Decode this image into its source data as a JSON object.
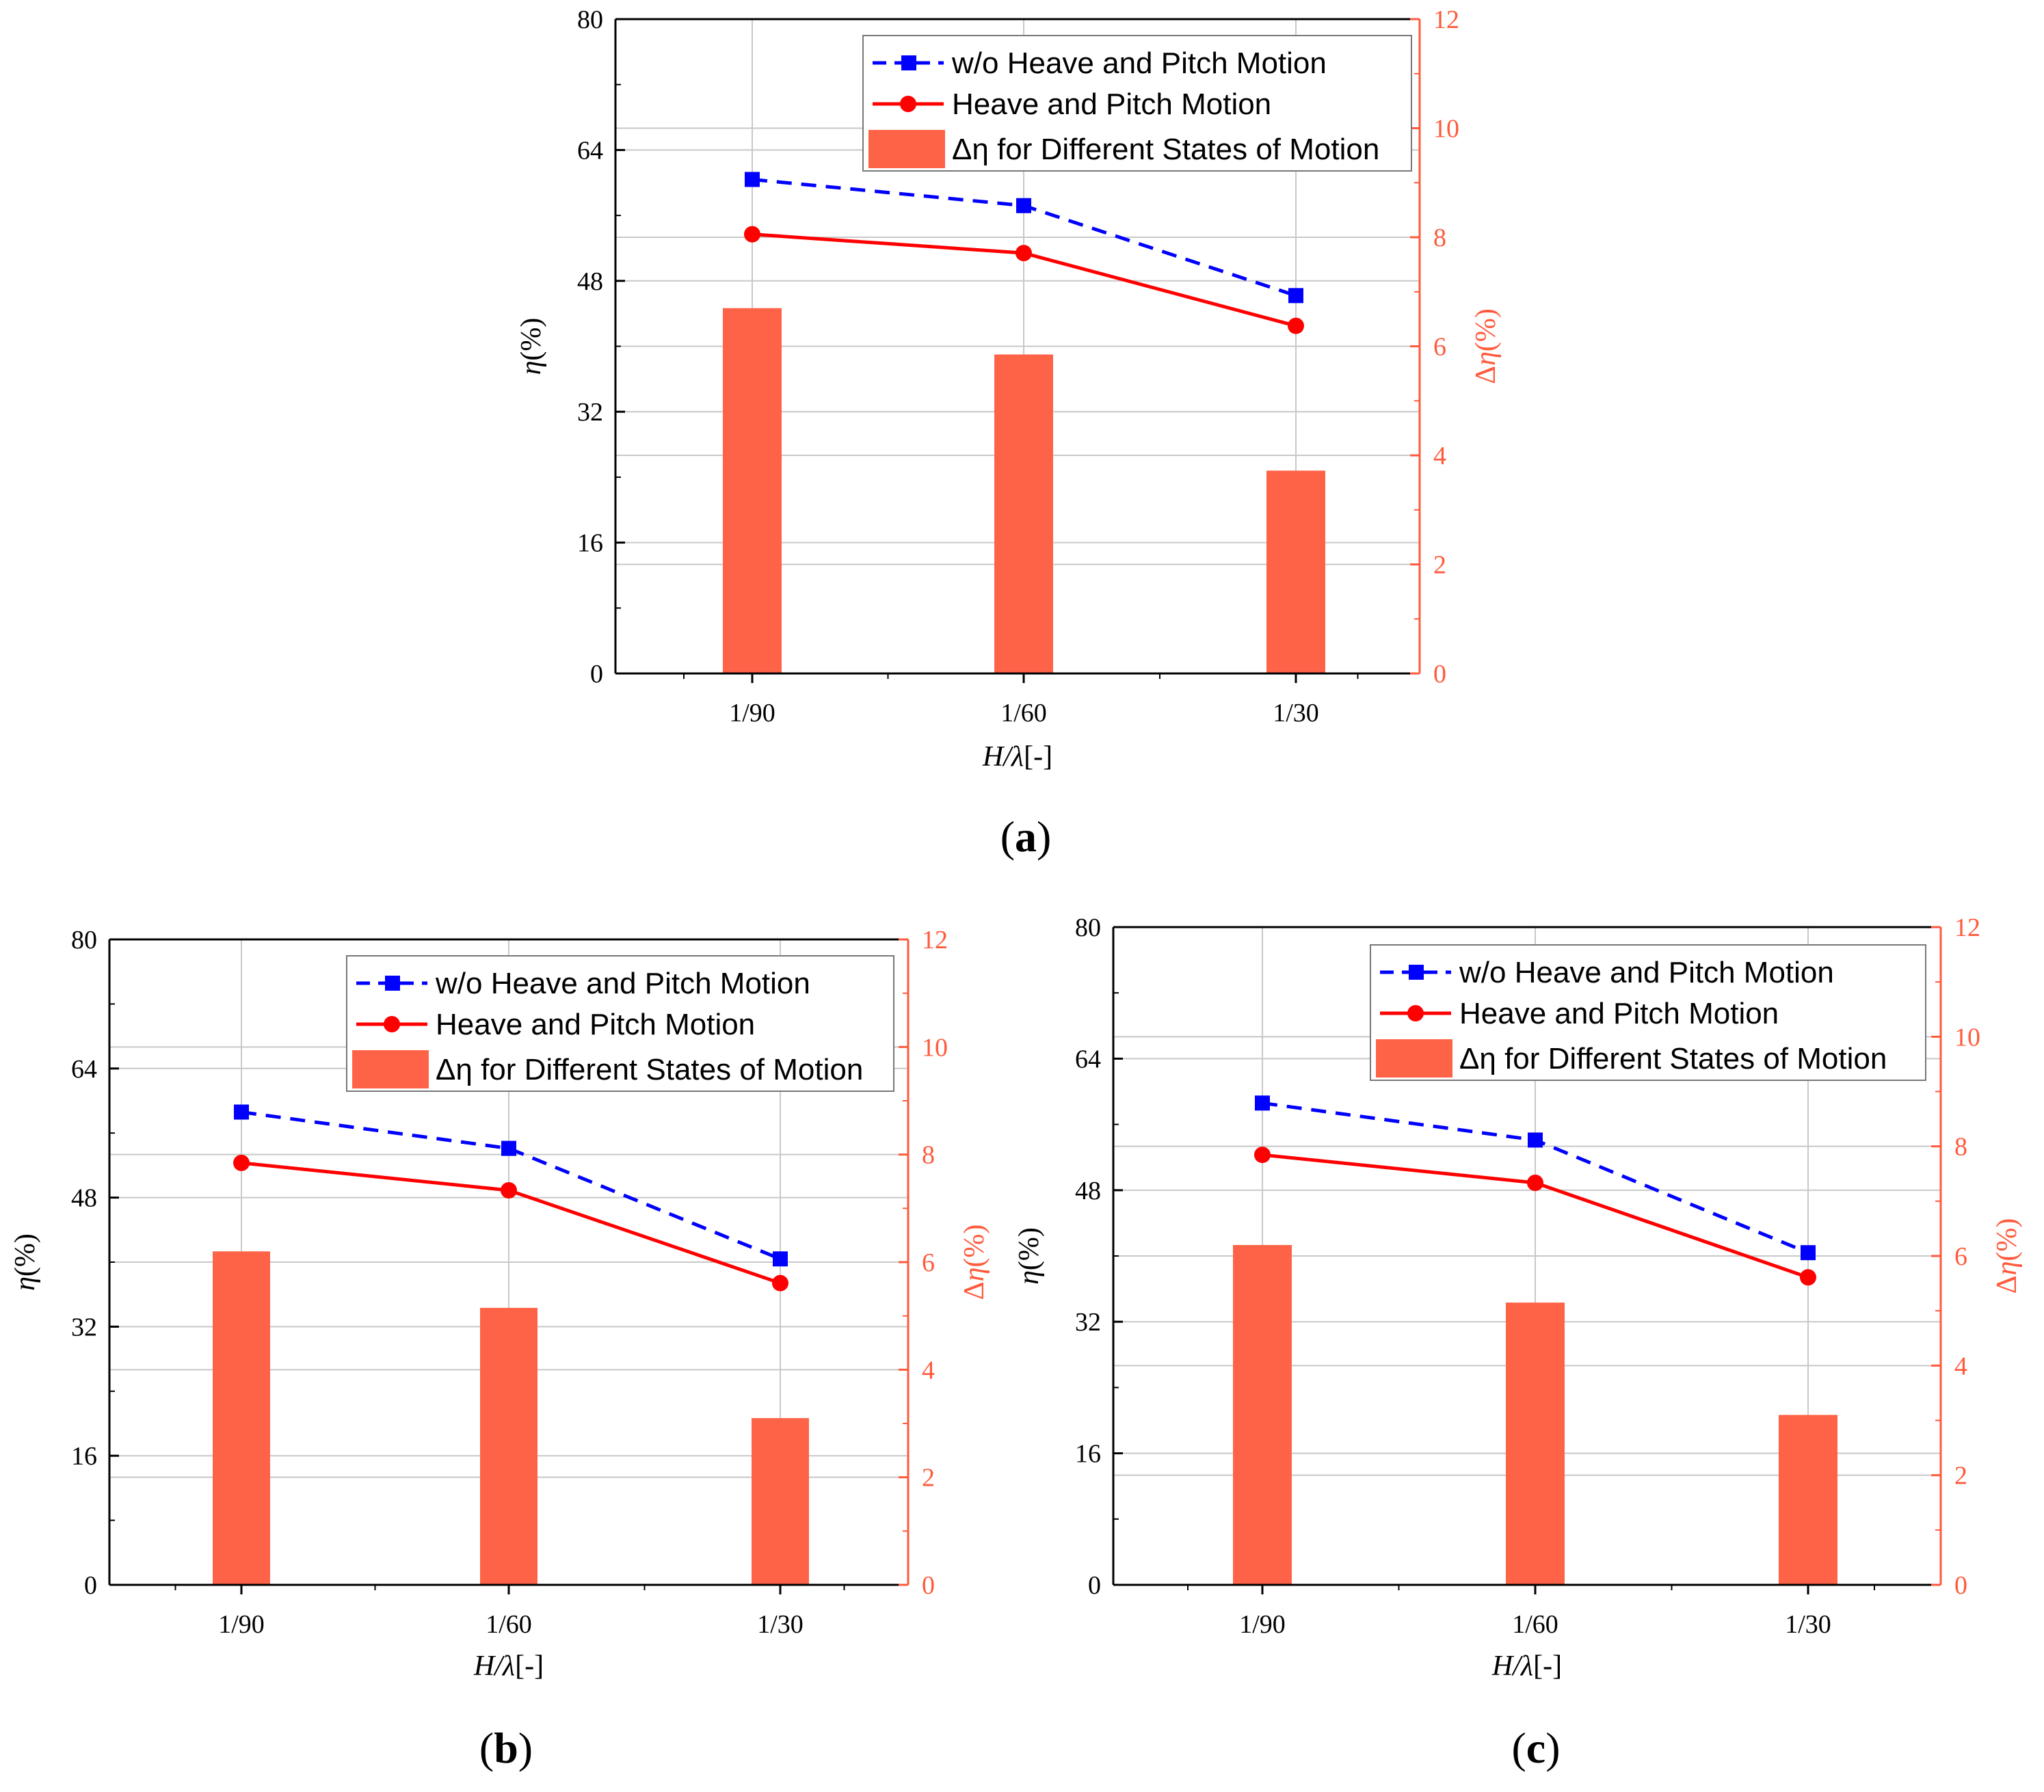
{
  "colors": {
    "series_dashed": "#0000ff",
    "series_solid": "#ff0000",
    "bars": "#ff6347",
    "right_axis": "#ff5a3c",
    "grid": "#c8c8c8"
  },
  "chart_data": [
    {
      "panel": "a",
      "panel_label": "(a)",
      "panel_letter": "a",
      "type": "bar+line",
      "categories": [
        "1/90",
        "1/60",
        "1/30"
      ],
      "xlabel_italic": "H/λ",
      "xlabel_rest": "[-]",
      "ylabel_italic": "η",
      "ylabel_rest": "(%)",
      "y2label_prefix": "Δ",
      "y2label_italic": "η",
      "y2label_rest": "(%)",
      "ylim": [
        0,
        80
      ],
      "yticks": [
        "0",
        "16",
        "32",
        "48",
        "64",
        "80"
      ],
      "y2lim": [
        0,
        12
      ],
      "y2ticks": [
        "0",
        "2",
        "4",
        "6",
        "8",
        "10",
        "12"
      ],
      "series": [
        {
          "name": "w/o Heave and Pitch Motion",
          "style": "dashed-square",
          "values": [
            60.4,
            57.2,
            46.2
          ]
        },
        {
          "name": "Heave and Pitch Motion",
          "style": "solid-circle",
          "values": [
            53.7,
            51.4,
            42.5
          ]
        }
      ],
      "bars": {
        "name": "Δη for Different States of Motion",
        "values": [
          6.7,
          5.85,
          3.72
        ]
      },
      "legend": [
        "w/o Heave and Pitch Motion",
        "Heave and Pitch Motion",
        "Δη for Different States of Motion"
      ]
    },
    {
      "panel": "b",
      "panel_label": "(b)",
      "panel_letter": "b",
      "type": "bar+line",
      "categories": [
        "1/90",
        "1/60",
        "1/30"
      ],
      "xlabel_italic": "H/λ",
      "xlabel_rest": "[-]",
      "ylabel_italic": "η",
      "ylabel_rest": "(%)",
      "y2label_prefix": "Δ",
      "y2label_italic": "η",
      "y2label_rest": "(%)",
      "ylim": [
        0,
        80
      ],
      "yticks": [
        "0",
        "16",
        "32",
        "48",
        "64",
        "80"
      ],
      "y2lim": [
        0,
        12
      ],
      "y2ticks": [
        "0",
        "2",
        "4",
        "6",
        "8",
        "10",
        "12"
      ],
      "series": [
        {
          "name": "w/o Heave and Pitch Motion",
          "style": "dashed-square",
          "values": [
            58.6,
            54.1,
            40.4
          ]
        },
        {
          "name": "Heave and Pitch Motion",
          "style": "solid-circle",
          "values": [
            52.3,
            48.9,
            37.4
          ]
        }
      ],
      "bars": {
        "name": "Δη for Different States of Motion",
        "values": [
          6.2,
          5.15,
          3.1
        ]
      },
      "legend": [
        "w/o Heave and Pitch Motion",
        "Heave and Pitch Motion",
        "Δη for Different States of Motion"
      ]
    },
    {
      "panel": "c",
      "panel_label": "(c)",
      "panel_letter": "c",
      "type": "bar+line",
      "categories": [
        "1/90",
        "1/60",
        "1/30"
      ],
      "xlabel_italic": "H/λ",
      "xlabel_rest": "[-]",
      "ylabel_italic": "η",
      "ylabel_rest": "(%)",
      "y2label_prefix": "Δ",
      "y2label_italic": "η",
      "y2label_rest": "(%)",
      "ylim": [
        0,
        80
      ],
      "yticks": [
        "0",
        "16",
        "32",
        "48",
        "64",
        "80"
      ],
      "y2lim": [
        0,
        12
      ],
      "y2ticks": [
        "0",
        "2",
        "4",
        "6",
        "8",
        "10",
        "12"
      ],
      "series": [
        {
          "name": "w/o Heave and Pitch Motion",
          "style": "dashed-square",
          "values": [
            58.6,
            54.1,
            40.4
          ]
        },
        {
          "name": "Heave and Pitch Motion",
          "style": "solid-circle",
          "values": [
            52.3,
            48.9,
            37.4
          ]
        }
      ],
      "bars": {
        "name": "Δη for Different States of Motion",
        "values": [
          6.2,
          5.15,
          3.1
        ]
      },
      "legend": [
        "w/o Heave and Pitch Motion",
        "Heave and Pitch Motion",
        "Δη for Different States of Motion"
      ]
    }
  ]
}
